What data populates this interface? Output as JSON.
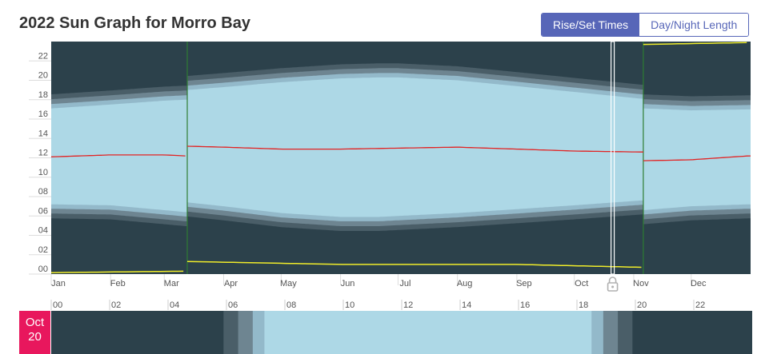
{
  "page": {
    "title": "2022 Sun Graph for Morro Bay",
    "toggle": {
      "rise_set": "Rise/Set Times",
      "day_night": "Day/Night Length",
      "active": "rise_set"
    }
  },
  "colors": {
    "night": "#2c414b",
    "twilight_astro": "#4a5e68",
    "twilight_nautical": "#6e8591",
    "twilight_civil": "#93b9ca",
    "day": "#add8e6",
    "solar_noon": "#e32222",
    "moon": "#f0ec2a",
    "dst": "#2e7d32",
    "accent": "#5766b8",
    "badge": "#e8175d"
  },
  "selected_date": {
    "month": "Oct",
    "day": "20",
    "day_of_year": 293
  },
  "chart_data": {
    "type": "area",
    "title": "2022 Sun Graph for Morro Bay",
    "x_tick_labels": [
      "Jan",
      "Feb",
      "Mar",
      "Apr",
      "May",
      "Jun",
      "Jul",
      "Aug",
      "Sep",
      "Oct",
      "Nov",
      "Dec"
    ],
    "y_tick_labels": [
      "00",
      "02",
      "04",
      "06",
      "08",
      "10",
      "12",
      "14",
      "16",
      "18",
      "20",
      "22"
    ],
    "ylim": [
      0,
      24
    ],
    "xlim": [
      "2022-01-01",
      "2022-12-31"
    ],
    "dst_start": "2022-03-13",
    "dst_end": "2022-11-06",
    "series": [
      {
        "name": "sunrise",
        "x": [
          "2022-01-01",
          "2022-02-01",
          "2022-03-01",
          "2022-03-12",
          "2022-03-13",
          "2022-04-01",
          "2022-05-01",
          "2022-06-01",
          "2022-06-21",
          "2022-07-01",
          "2022-08-01",
          "2022-09-01",
          "2022-10-01",
          "2022-11-05",
          "2022-11-06",
          "2022-12-01",
          "2022-12-31"
        ],
        "y": [
          7.2,
          7.1,
          6.6,
          6.4,
          7.4,
          7.0,
          6.3,
          5.9,
          5.9,
          6.0,
          6.3,
          6.7,
          7.1,
          7.6,
          6.6,
          7.0,
          7.2
        ]
      },
      {
        "name": "sunset",
        "x": [
          "2022-01-01",
          "2022-02-01",
          "2022-03-01",
          "2022-03-12",
          "2022-03-13",
          "2022-04-01",
          "2022-05-01",
          "2022-06-01",
          "2022-06-21",
          "2022-07-01",
          "2022-08-01",
          "2022-09-01",
          "2022-10-01",
          "2022-11-05",
          "2022-11-06",
          "2022-12-01",
          "2022-12-31"
        ],
        "y": [
          17.1,
          17.5,
          17.9,
          18.0,
          19.0,
          19.3,
          19.8,
          20.2,
          20.3,
          20.3,
          20.0,
          19.4,
          18.8,
          18.1,
          17.1,
          16.9,
          17.0
        ]
      },
      {
        "name": "solar_noon",
        "x": [
          "2022-01-01",
          "2022-02-01",
          "2022-03-01",
          "2022-03-12",
          "2022-03-13",
          "2022-04-01",
          "2022-05-01",
          "2022-06-01",
          "2022-07-01",
          "2022-08-01",
          "2022-09-01",
          "2022-10-01",
          "2022-11-05",
          "2022-11-06",
          "2022-12-01",
          "2022-12-31"
        ],
        "y": [
          12.1,
          12.3,
          12.3,
          12.2,
          13.2,
          13.1,
          12.9,
          12.9,
          13.0,
          13.1,
          12.9,
          12.7,
          12.6,
          11.7,
          11.8,
          12.2
        ]
      },
      {
        "name": "moon",
        "x": [
          "2022-01-01",
          "2022-03-12",
          "2022-03-13",
          "2022-06-01",
          "2022-09-01",
          "2022-11-05",
          "2022-11-06",
          "2022-12-31"
        ],
        "y": [
          0.15,
          0.3,
          1.3,
          1.0,
          1.0,
          0.7,
          23.7,
          23.9
        ]
      }
    ],
    "twilight_offsets_hours": {
      "civil": 0.45,
      "nautical": 0.95,
      "astronomical": 1.45
    },
    "day_strip": {
      "tick_labels": [
        "00",
        "02",
        "04",
        "06",
        "08",
        "10",
        "12",
        "14",
        "16",
        "18",
        "20",
        "22"
      ],
      "astro_dawn": 5.9,
      "nautical_dawn": 6.4,
      "civil_dawn": 6.9,
      "sunrise": 7.3,
      "sunset": 18.5,
      "civil_dusk": 18.9,
      "nautical_dusk": 19.4,
      "astro_dusk": 19.9
    }
  }
}
